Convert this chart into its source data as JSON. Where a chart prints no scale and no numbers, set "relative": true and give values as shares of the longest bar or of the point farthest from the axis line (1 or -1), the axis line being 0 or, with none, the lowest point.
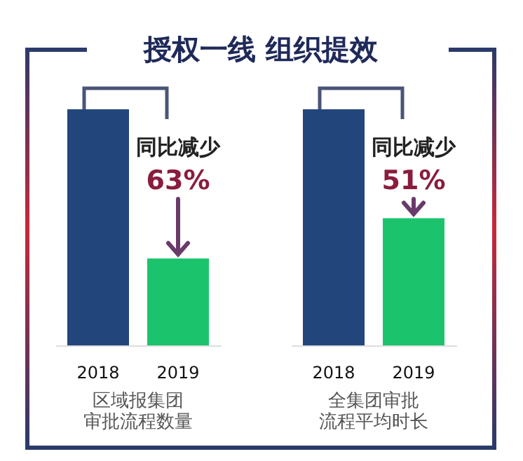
{
  "chart_data": [
    {
      "type": "bar",
      "title": "授权一线 组织提效",
      "relative": true,
      "categories": [
        "2018",
        "2019"
      ],
      "values": [
        1,
        0.37
      ],
      "colors": [
        "#22467b",
        "#1bc46c"
      ],
      "xlabel": "区域报集团审批流程数量",
      "annotations": [
        "同比减少",
        "63%"
      ]
    },
    {
      "type": "bar",
      "relative": true,
      "categories": [
        "2018",
        "2019"
      ],
      "values": [
        1,
        0.54
      ],
      "colors": [
        "#22467b",
        "#1bc46c"
      ],
      "xlabel": "全集团审批流程平均时长",
      "annotations": [
        "同比减少",
        "51%"
      ]
    }
  ]
}
